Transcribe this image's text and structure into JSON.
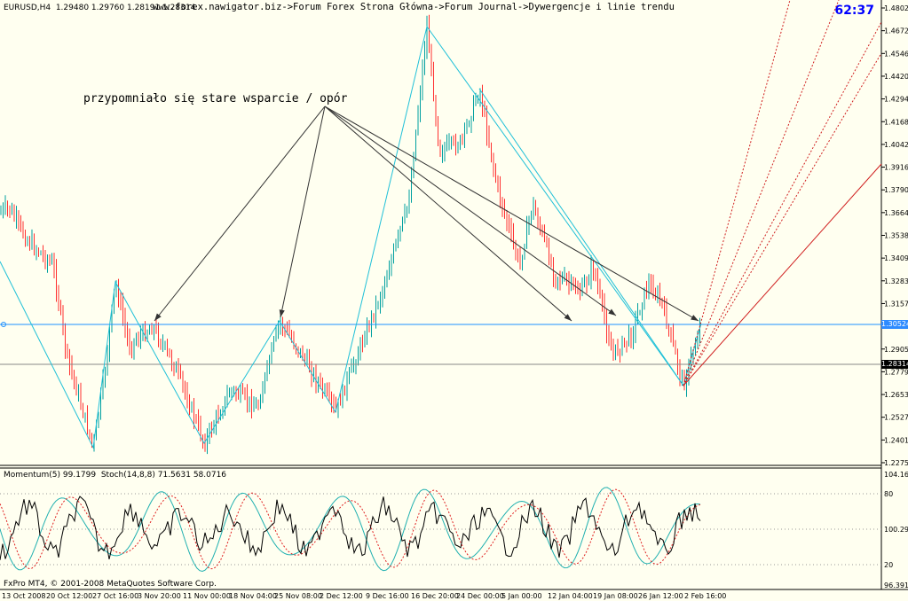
{
  "header": {
    "symbol_info": "EURUSD,H4  1.29480 1.29760 1.28191 1.28314",
    "breadcrumb": "www.forex.nawigator.biz->Forum Forex Strona Główna->Forum Journal->Dywergencje i linie trendu",
    "clock": "62:37"
  },
  "annotation": "przypomniało się stare wsparcie / opór",
  "price_axis": [
    "1.48020",
    "1.46725",
    "1.45465",
    "1.44205",
    "1.42945",
    "1.41685",
    "1.40425",
    "1.39165",
    "1.37905",
    "1.36645",
    "1.35385",
    "1.34090",
    "1.32830",
    "1.31570",
    "1.30310",
    "1.29050",
    "1.27790",
    "1.26530",
    "1.25270",
    "1.24010",
    "1.22750"
  ],
  "price_boxes": {
    "bid": "1.30524",
    "last": "1.28314"
  },
  "time_axis": [
    "13 Oct 2008",
    "20 Oct 12:00",
    "27 Oct 16:00",
    "3 Nov 20:00",
    "11 Nov 00:00",
    "18 Nov 04:00",
    "25 Nov 08:00",
    "2 Dec 12:00",
    "9 Dec 16:00",
    "16 Dec 20:00",
    "24 Dec 00:00",
    "5 Jan 00:00",
    "12 Jan 04:00",
    "19 Jan 08:00",
    "26 Jan 12:00",
    "2 Feb 16:00"
  ],
  "indicator": {
    "header": "Momentum(5) 99.1799  Stoch(14,8,8) 71.5631 58.0716",
    "axis": [
      "104.16",
      "80",
      "100.2986",
      "20",
      "96.3912"
    ]
  },
  "footer": {
    "copyright": "FxPro MT4, © 2001-2008 MetaQuotes Software Corp."
  },
  "colors": {
    "bull": "#00A0A0",
    "bear": "#FF3030",
    "zigzag": "#20C0D8",
    "bid_line": "#1E90FF",
    "fan": "#D02020",
    "accent": "#0000FF"
  }
}
